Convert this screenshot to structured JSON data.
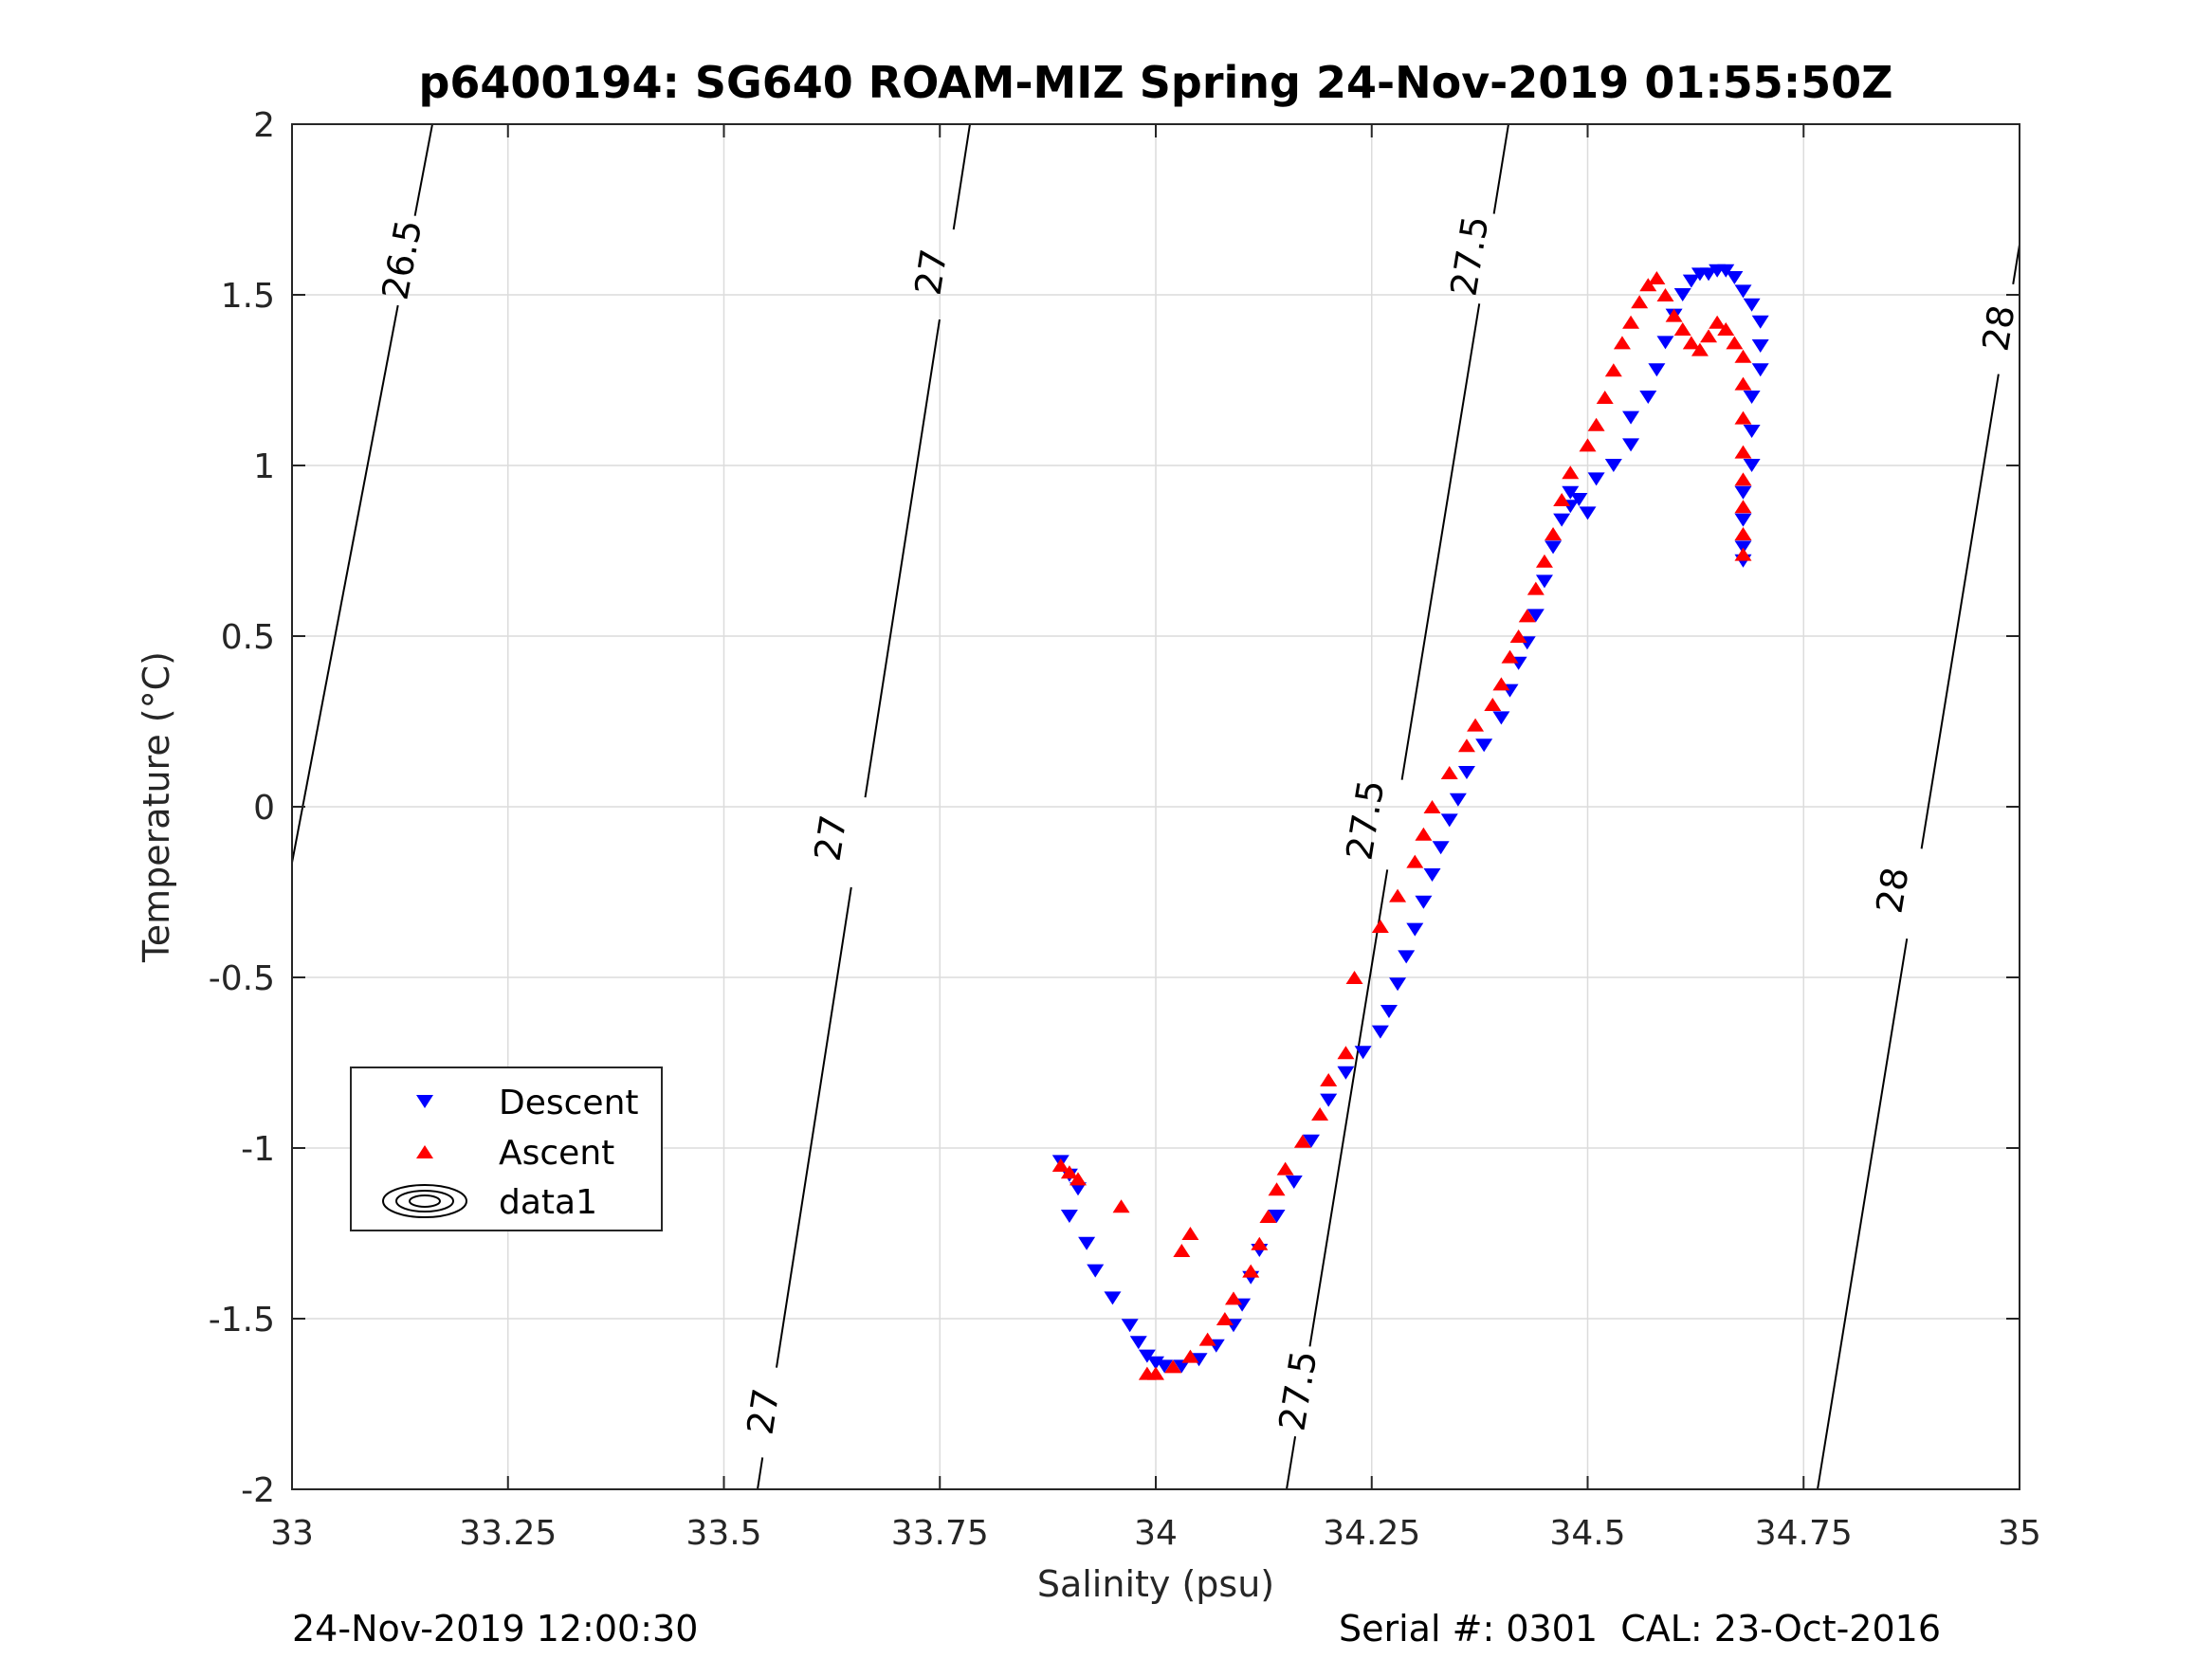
{
  "footer": {
    "left": "24-Nov-2019 12:00:30",
    "right": "Serial #: 0301  CAL: 23-Oct-2016"
  },
  "chart_data": {
    "type": "scatter",
    "title": "p6400194: SG640 ROAM-MIZ Spring 24-Nov-2019 01:55:50Z",
    "xlabel": "Salinity (psu)",
    "ylabel": "Temperature (°C)",
    "xlim": [
      33,
      35
    ],
    "ylim": [
      -2,
      2
    ],
    "xticks": [
      "33",
      "33.25",
      "33.5",
      "33.75",
      "34",
      "34.25",
      "34.5",
      "34.75",
      "35"
    ],
    "yticks": [
      "2",
      "1.5",
      "1",
      "0.5",
      "0",
      "-0.5",
      "-1",
      "-1.5",
      "-2"
    ],
    "grid": true,
    "legend": {
      "placement": "lower-left",
      "entries": [
        "Descent",
        "Ascent",
        "data1"
      ]
    },
    "series": [
      {
        "name": "Descent",
        "marker": "triangle-down",
        "color": "#0000ff",
        "points": [
          [
            33.89,
            -1.04
          ],
          [
            33.9,
            -1.08
          ],
          [
            33.91,
            -1.12
          ],
          [
            33.9,
            -1.2
          ],
          [
            33.92,
            -1.28
          ],
          [
            33.93,
            -1.36
          ],
          [
            33.95,
            -1.44
          ],
          [
            33.97,
            -1.52
          ],
          [
            33.98,
            -1.57
          ],
          [
            33.99,
            -1.61
          ],
          [
            34.0,
            -1.63
          ],
          [
            34.01,
            -1.64
          ],
          [
            34.03,
            -1.64
          ],
          [
            34.05,
            -1.62
          ],
          [
            34.07,
            -1.58
          ],
          [
            34.09,
            -1.52
          ],
          [
            34.1,
            -1.46
          ],
          [
            34.11,
            -1.38
          ],
          [
            34.12,
            -1.3
          ],
          [
            34.14,
            -1.2
          ],
          [
            34.16,
            -1.1
          ],
          [
            34.18,
            -0.98
          ],
          [
            34.2,
            -0.86
          ],
          [
            34.22,
            -0.78
          ],
          [
            34.24,
            -0.72
          ],
          [
            34.26,
            -0.66
          ],
          [
            34.27,
            -0.6
          ],
          [
            34.28,
            -0.52
          ],
          [
            34.29,
            -0.44
          ],
          [
            34.3,
            -0.36
          ],
          [
            34.31,
            -0.28
          ],
          [
            34.32,
            -0.2
          ],
          [
            34.33,
            -0.12
          ],
          [
            34.34,
            -0.04
          ],
          [
            34.35,
            0.02
          ],
          [
            34.36,
            0.1
          ],
          [
            34.38,
            0.18
          ],
          [
            34.4,
            0.26
          ],
          [
            34.41,
            0.34
          ],
          [
            34.42,
            0.42
          ],
          [
            34.43,
            0.48
          ],
          [
            34.44,
            0.56
          ],
          [
            34.45,
            0.66
          ],
          [
            34.46,
            0.76
          ],
          [
            34.47,
            0.84
          ],
          [
            34.48,
            0.88
          ],
          [
            34.49,
            0.9
          ],
          [
            34.5,
            0.86
          ],
          [
            34.48,
            0.92
          ],
          [
            34.51,
            0.96
          ],
          [
            34.53,
            1.0
          ],
          [
            34.55,
            1.06
          ],
          [
            34.55,
            1.14
          ],
          [
            34.57,
            1.2
          ],
          [
            34.58,
            1.28
          ],
          [
            34.59,
            1.36
          ],
          [
            34.6,
            1.44
          ],
          [
            34.61,
            1.5
          ],
          [
            34.62,
            1.54
          ],
          [
            34.63,
            1.56
          ],
          [
            34.64,
            1.56
          ],
          [
            34.65,
            1.57
          ],
          [
            34.66,
            1.57
          ],
          [
            34.67,
            1.55
          ],
          [
            34.68,
            1.51
          ],
          [
            34.69,
            1.47
          ],
          [
            34.7,
            1.42
          ],
          [
            34.7,
            1.35
          ],
          [
            34.7,
            1.28
          ],
          [
            34.69,
            1.2
          ],
          [
            34.69,
            1.1
          ],
          [
            34.69,
            1.0
          ],
          [
            34.68,
            0.92
          ],
          [
            34.68,
            0.84
          ],
          [
            34.68,
            0.76
          ],
          [
            34.68,
            0.72
          ]
        ]
      },
      {
        "name": "Ascent",
        "marker": "triangle-up",
        "color": "#ff0000",
        "points": [
          [
            33.89,
            -1.05
          ],
          [
            33.9,
            -1.07
          ],
          [
            33.91,
            -1.09
          ],
          [
            33.96,
            -1.17
          ],
          [
            34.03,
            -1.3
          ],
          [
            34.04,
            -1.25
          ],
          [
            33.99,
            -1.66
          ],
          [
            34.0,
            -1.66
          ],
          [
            34.02,
            -1.64
          ],
          [
            34.04,
            -1.61
          ],
          [
            34.06,
            -1.56
          ],
          [
            34.08,
            -1.5
          ],
          [
            34.09,
            -1.44
          ],
          [
            34.11,
            -1.36
          ],
          [
            34.12,
            -1.28
          ],
          [
            34.13,
            -1.2
          ],
          [
            34.14,
            -1.12
          ],
          [
            34.15,
            -1.06
          ],
          [
            34.17,
            -0.98
          ],
          [
            34.19,
            -0.9
          ],
          [
            34.2,
            -0.8
          ],
          [
            34.22,
            -0.72
          ],
          [
            34.23,
            -0.5
          ],
          [
            34.26,
            -0.35
          ],
          [
            34.28,
            -0.26
          ],
          [
            34.3,
            -0.16
          ],
          [
            34.31,
            -0.08
          ],
          [
            34.32,
            0.0
          ],
          [
            34.34,
            0.1
          ],
          [
            34.36,
            0.18
          ],
          [
            34.37,
            0.24
          ],
          [
            34.39,
            0.3
          ],
          [
            34.4,
            0.36
          ],
          [
            34.41,
            0.44
          ],
          [
            34.42,
            0.5
          ],
          [
            34.43,
            0.56
          ],
          [
            34.44,
            0.64
          ],
          [
            34.45,
            0.72
          ],
          [
            34.46,
            0.8
          ],
          [
            34.47,
            0.9
          ],
          [
            34.48,
            0.98
          ],
          [
            34.5,
            1.06
          ],
          [
            34.51,
            1.12
          ],
          [
            34.52,
            1.2
          ],
          [
            34.53,
            1.28
          ],
          [
            34.54,
            1.36
          ],
          [
            34.55,
            1.42
          ],
          [
            34.56,
            1.48
          ],
          [
            34.57,
            1.53
          ],
          [
            34.58,
            1.55
          ],
          [
            34.59,
            1.5
          ],
          [
            34.6,
            1.44
          ],
          [
            34.61,
            1.4
          ],
          [
            34.62,
            1.36
          ],
          [
            34.63,
            1.34
          ],
          [
            34.64,
            1.38
          ],
          [
            34.65,
            1.42
          ],
          [
            34.66,
            1.4
          ],
          [
            34.67,
            1.36
          ],
          [
            34.68,
            1.32
          ],
          [
            34.68,
            1.24
          ],
          [
            34.68,
            1.14
          ],
          [
            34.68,
            1.04
          ],
          [
            34.68,
            0.96
          ],
          [
            34.68,
            0.88
          ],
          [
            34.68,
            0.8
          ],
          [
            34.68,
            0.74
          ]
        ]
      }
    ],
    "contours": [
      {
        "level": "26.5",
        "labels": [
          "26.5"
        ]
      },
      {
        "level": "27",
        "labels": [
          "27",
          "27",
          "27"
        ]
      },
      {
        "level": "27.5",
        "labels": [
          "27.5",
          "27.5",
          "27.5"
        ]
      },
      {
        "level": "28",
        "labels": [
          "28",
          "28"
        ]
      }
    ]
  }
}
